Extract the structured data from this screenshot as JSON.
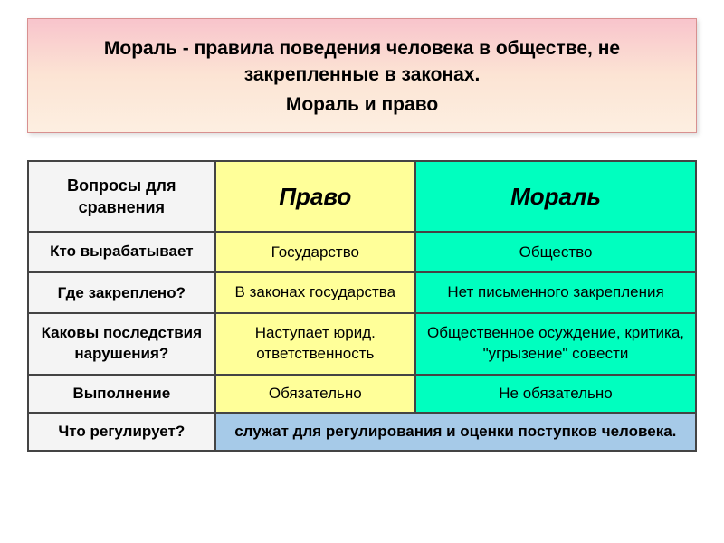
{
  "title": {
    "line1": "Мораль - правила поведения человека в обществе, не закрепленные в законах.",
    "line2": "Мораль   и    право"
  },
  "table": {
    "headers": {
      "questions": "Вопросы для сравнения",
      "right": "Право",
      "moral": "Мораль"
    },
    "rows": [
      {
        "question": "Кто вырабатывает",
        "right": "Государство",
        "moral": "Общество"
      },
      {
        "question": "Где закреплено?",
        "right": "В законах государства",
        "moral": "Нет письменного закрепления"
      },
      {
        "question": "Каковы последствия нарушения?",
        "right": "Наступает юрид. ответственность",
        "moral": "Общественное осуждение, критика, \"угрызение\" совести"
      },
      {
        "question": "Выполнение",
        "right": "Обязательно",
        "moral": "Не обязательно"
      }
    ],
    "footer": {
      "question": "Что регулирует?",
      "answer": "служат для регулирования и оценки поступков человека."
    }
  },
  "colors": {
    "title_gradient_top": "#f8c4cc",
    "title_gradient_mid": "#fce4d4",
    "title_gradient_bot": "#fdefe1",
    "title_border": "#d89090",
    "col_questions_bg": "#f4f4f4",
    "col_right_bg": "#ffff99",
    "col_moral_bg": "#00ffbf",
    "footer_bg": "#a6cae8",
    "border": "#444444",
    "text": "#000000"
  },
  "fonts": {
    "title_size": 21,
    "header_size": 26,
    "cell_size": 17,
    "question_header_size": 18
  }
}
